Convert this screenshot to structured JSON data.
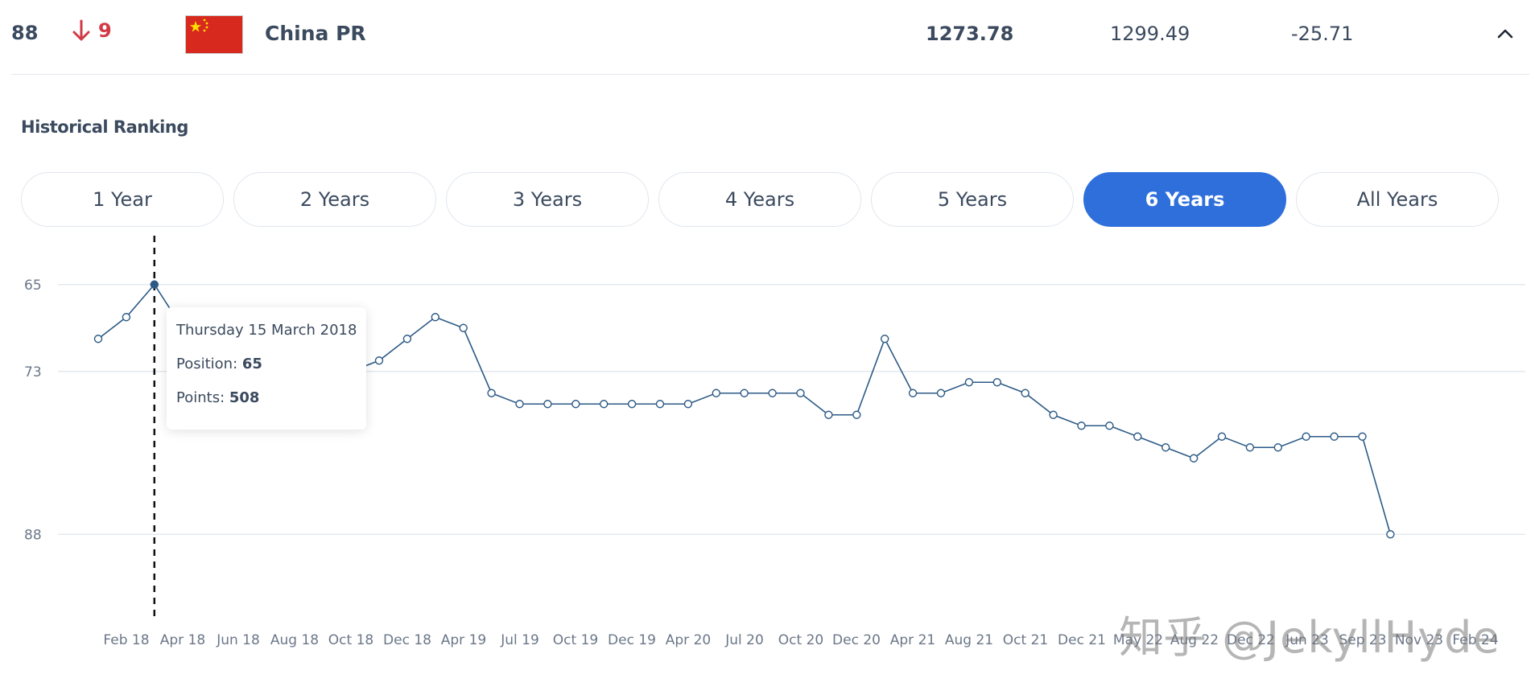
{
  "row": {
    "rank": "88",
    "change": "9",
    "country": "China PR",
    "points": "1273.78",
    "previous_points": "1299.49",
    "difference": "-25.71"
  },
  "colors": {
    "accent": "#2f6fdb",
    "line": "#2c5a85",
    "drop": "#d13a46",
    "flag_red": "#d8291f",
    "flag_star": "#ffde00"
  },
  "section_title": "Historical Ranking",
  "tabs": [
    "1 Year",
    "2 Years",
    "3 Years",
    "4 Years",
    "5 Years",
    "6 Years",
    "All Years"
  ],
  "active_tab": "6 Years",
  "tooltip": {
    "date": "Thursday 15 March 2018",
    "position_label": "Position:",
    "position_value": "65",
    "points_label": "Points:",
    "points_value": "508"
  },
  "watermark": "知乎 @JekyllHyde",
  "chart_data": {
    "type": "line",
    "title": "",
    "xlabel": "",
    "ylabel": "",
    "y_inverted": true,
    "y_ticks": [
      65,
      73,
      88
    ],
    "ylim": [
      60.5,
      92.5
    ],
    "grid": true,
    "x_tick_labels": [
      "Feb 18",
      "Apr 18",
      "Jun 18",
      "Aug 18",
      "Oct 18",
      "Dec 18",
      "Apr 19",
      "Jul 19",
      "Oct 19",
      "Dec 19",
      "Apr 20",
      "Jul 20",
      "Oct 20",
      "Dec 20",
      "Apr 21",
      "Aug 21",
      "Oct 21",
      "Dec 21",
      "May 22",
      "Aug 22",
      "Dec 22",
      "Jun 23",
      "Sep 23",
      "Nov 23",
      "Feb 24"
    ],
    "highlight_index": 2,
    "series": [
      {
        "name": "",
        "values": [
          70,
          68,
          65,
          69,
          74,
          75,
          76,
          76,
          71,
          73,
          72,
          70,
          68,
          69,
          75,
          76,
          76,
          76,
          76,
          76,
          76,
          76,
          75,
          75,
          75,
          75,
          77,
          77,
          70,
          75,
          75,
          74,
          74,
          75,
          77,
          78,
          78,
          79,
          80,
          81,
          79,
          80,
          80,
          79,
          79,
          79,
          88
        ]
      }
    ]
  }
}
